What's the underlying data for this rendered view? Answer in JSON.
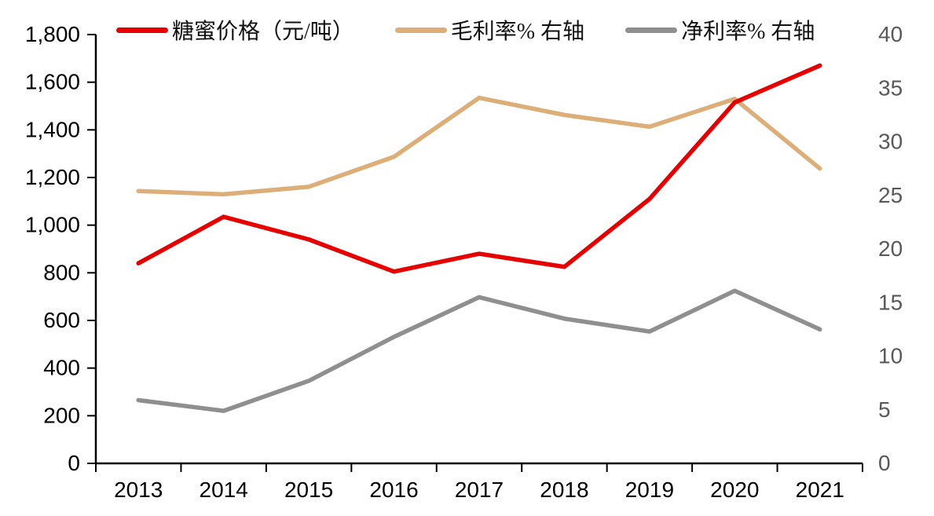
{
  "chart_data": {
    "type": "line",
    "title": "",
    "grid": "off",
    "legend_position": "top",
    "categories": [
      "2013",
      "2014",
      "2015",
      "2016",
      "2017",
      "2018",
      "2019",
      "2020",
      "2021"
    ],
    "series": [
      {
        "name": "糖蜜价格（元/吨）",
        "axis": "left",
        "color": "#e60000",
        "values": [
          840,
          1035,
          940,
          805,
          880,
          825,
          1110,
          1515,
          1670
        ]
      },
      {
        "name": "毛利率% 右轴",
        "axis": "right",
        "color": "#dcae78",
        "values": [
          25.4,
          25.1,
          25.8,
          28.6,
          34.1,
          32.5,
          31.4,
          34.0,
          27.5
        ]
      },
      {
        "name": "净利率% 右轴",
        "axis": "right",
        "color": "#8f8f8f",
        "values": [
          5.9,
          4.9,
          7.7,
          11.8,
          15.5,
          13.5,
          12.3,
          16.1,
          12.5
        ]
      }
    ],
    "left_axis": {
      "min": 0,
      "max": 1800,
      "step": 200,
      "tick_labels": [
        "0",
        "200",
        "400",
        "600",
        "800",
        "1,000",
        "1,200",
        "1,400",
        "1,600",
        "1,800"
      ],
      "label_color": "#000000"
    },
    "right_axis": {
      "min": 0,
      "max": 40,
      "step": 5,
      "tick_labels": [
        "0",
        "5",
        "10",
        "15",
        "20",
        "25",
        "30",
        "35",
        "40"
      ],
      "label_color": "#595959"
    },
    "x_axis": {
      "label_color": "#000000",
      "axis_color": "#000000"
    }
  }
}
